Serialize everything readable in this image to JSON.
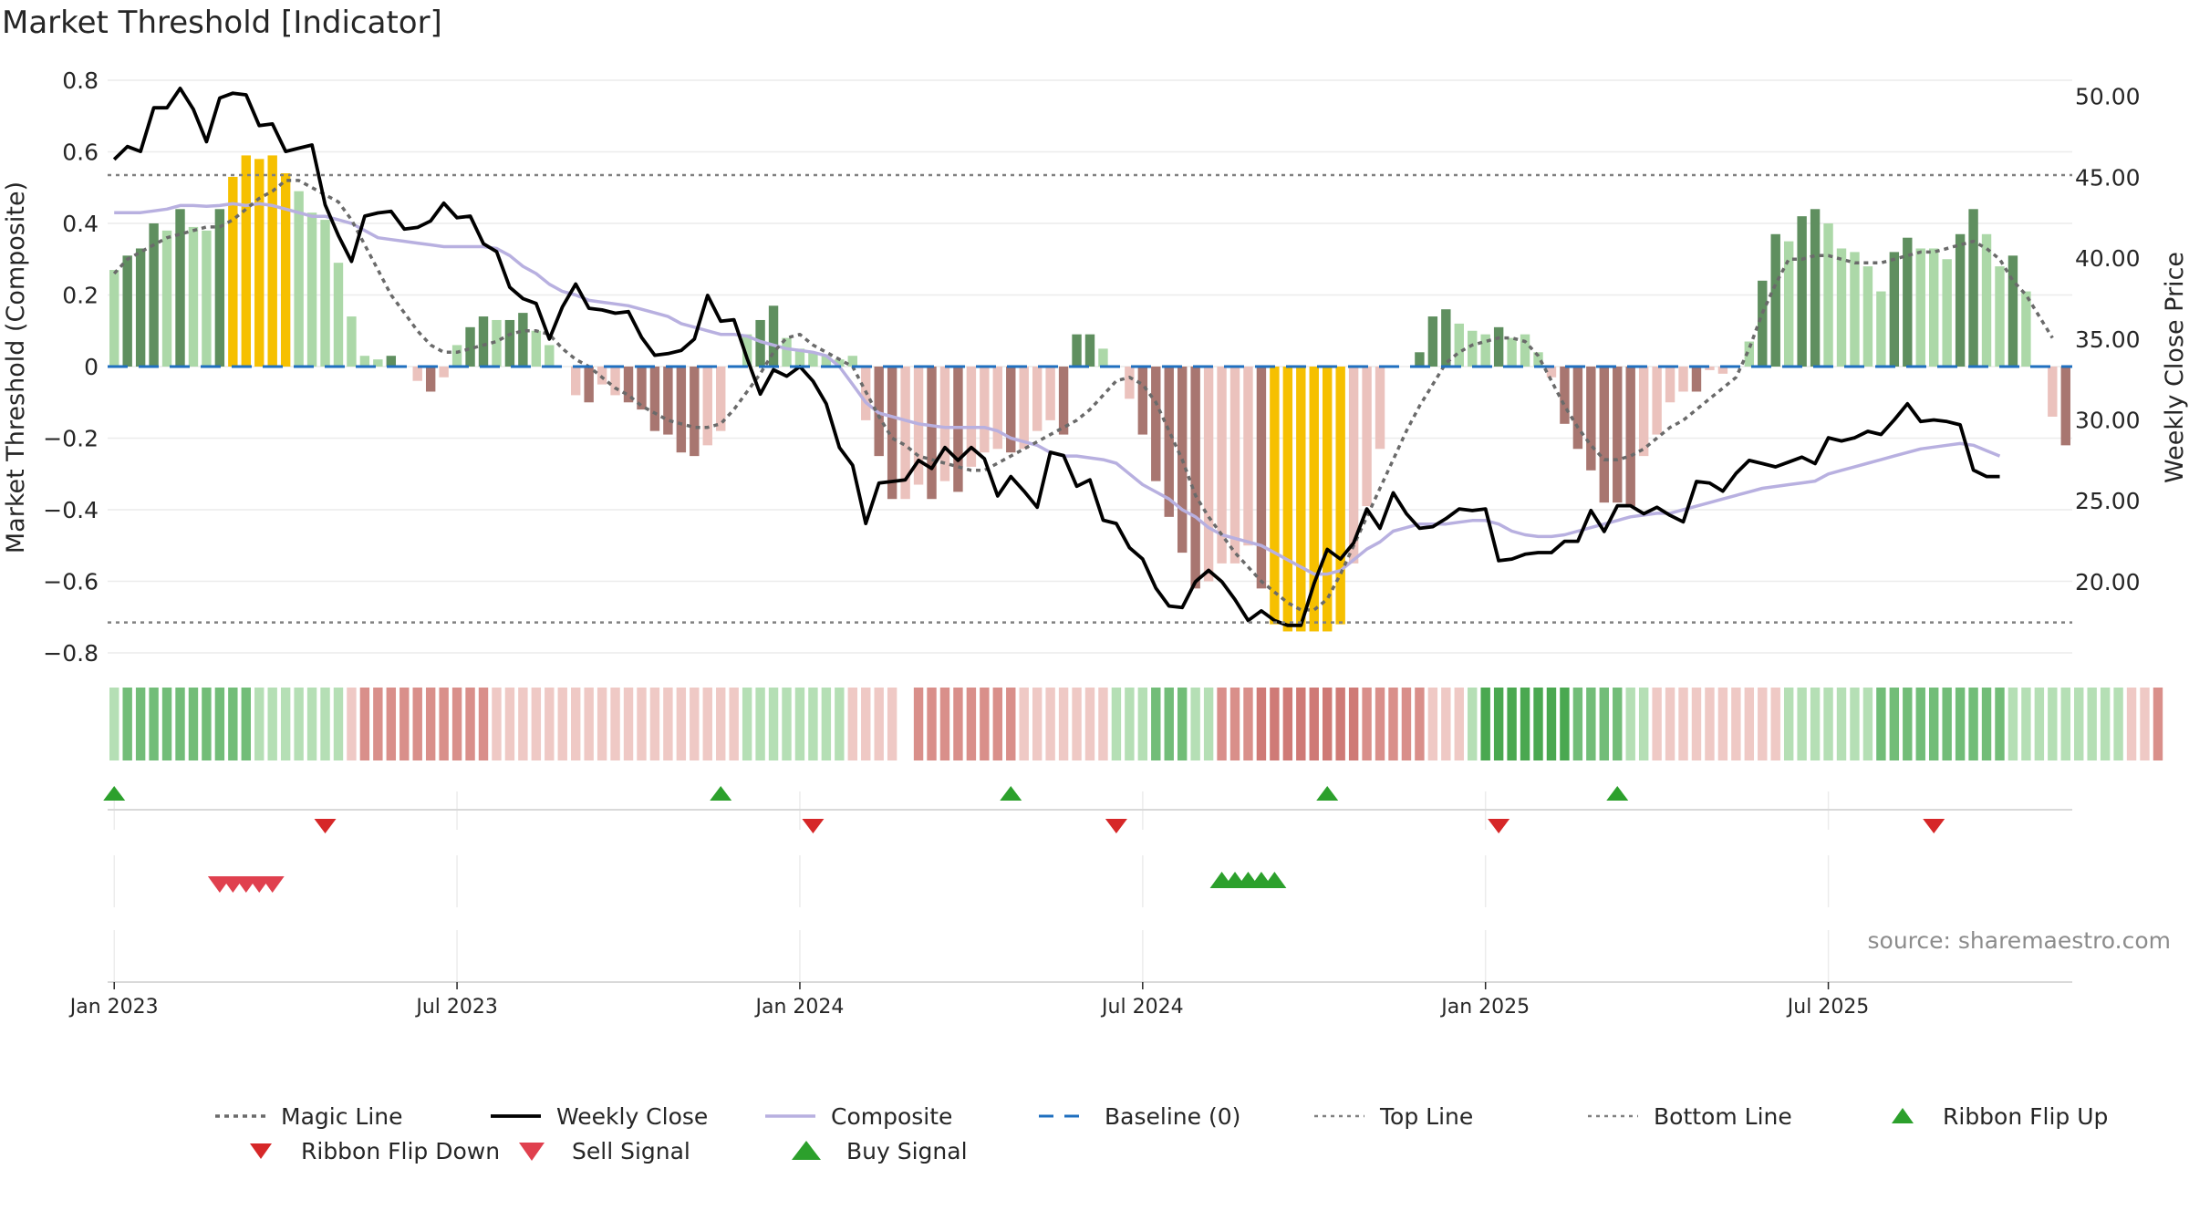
{
  "page": {
    "title": "Market Threshold [Indicator]"
  },
  "colors": {
    "bar_green_dark": "#5f8f5f",
    "bar_green_light": "#acd8a8",
    "bar_red_dark": "#a87670",
    "bar_red_light": "#ebc2bd",
    "bar_yellow": "#f6c000",
    "weekly_close": "#000000",
    "composite": "#b8b0e0",
    "magic_line": "#6a6a6a",
    "baseline": "#1f6fbf",
    "top_bottom": "#808080",
    "triangle_green": "#2ca02c",
    "triangle_red": "#d62728",
    "grid": "#ececec",
    "text": "#262626",
    "source": "#8c8c8c"
  },
  "chart_data": {
    "type": "bar",
    "title": "Market Threshold [Indicator]",
    "ylabel": "Market Threshold (Composite)",
    "y2label": "Weekly Close Price",
    "source": "source: sharemaestro.com",
    "ylim": [
      -0.8,
      0.8
    ],
    "yticks": [
      0.8,
      0.6,
      0.4,
      0.2,
      0,
      -0.2,
      -0.4,
      -0.6,
      -0.8
    ],
    "yticklabels": [
      "0.8",
      "0.6",
      "0.4",
      "0.2",
      "0",
      "−0.2",
      "−0.4",
      "−0.6",
      "−0.8"
    ],
    "y2lim": [
      15.6,
      51.0
    ],
    "y2ticks": [
      50,
      45,
      40,
      35,
      30,
      25,
      20
    ],
    "y2ticklabels": [
      "50.00",
      "45.00",
      "40.00",
      "35.00",
      "30.00",
      "25.00",
      "20.00"
    ],
    "xticks": [
      {
        "label": "Jan 2023",
        "week": 1
      },
      {
        "label": "Jul 2023",
        "week": 27
      },
      {
        "label": "Jan 2024",
        "week": 53
      },
      {
        "label": "Jul 2024",
        "week": 79
      },
      {
        "label": "Jan 2025",
        "week": 105
      },
      {
        "label": "Jul 2025",
        "week": 131
      }
    ],
    "week_labels_note": "x values are week indices; week 1 = first week of Jan 2023",
    "grid": true,
    "top_line": 0.535,
    "bottom_line": -0.715,
    "baseline": 0,
    "legend_position": "bottom",
    "legend": [
      {
        "label": "Magic Line",
        "kind": "dotted-line"
      },
      {
        "label": "Weekly Close",
        "kind": "solid-line"
      },
      {
        "label": "Composite",
        "kind": "lavender-line"
      },
      {
        "label": "Baseline (0)",
        "kind": "dashed-line"
      },
      {
        "label": "Top Line",
        "kind": "gray-dotted-line"
      },
      {
        "label": "Bottom Line",
        "kind": "gray-dotted-line"
      },
      {
        "label": "Ribbon Flip Up",
        "kind": "triangle-up-green"
      },
      {
        "label": "Ribbon Flip Down",
        "kind": "triangle-down-red"
      },
      {
        "label": "Sell Signal",
        "kind": "triangle-down-crimson"
      },
      {
        "label": "Buy Signal",
        "kind": "triangle-up-green-large"
      }
    ],
    "bars": [
      [
        0.27,
        "gl"
      ],
      [
        0.31,
        "gd"
      ],
      [
        0.33,
        "gd"
      ],
      [
        0.4,
        "gd"
      ],
      [
        0.38,
        "gl"
      ],
      [
        0.44,
        "gd"
      ],
      [
        0.39,
        "gl"
      ],
      [
        0.38,
        "gl"
      ],
      [
        0.44,
        "gd"
      ],
      [
        0.53,
        "y"
      ],
      [
        0.59,
        "y"
      ],
      [
        0.58,
        "y"
      ],
      [
        0.59,
        "y"
      ],
      [
        0.54,
        "y"
      ],
      [
        0.49,
        "gl"
      ],
      [
        0.43,
        "gl"
      ],
      [
        0.41,
        "gl"
      ],
      [
        0.29,
        "gl"
      ],
      [
        0.14,
        "gl"
      ],
      [
        0.03,
        "gl"
      ],
      [
        0.02,
        "gl"
      ],
      [
        0.03,
        "gd"
      ],
      [
        0.0,
        "gl"
      ],
      [
        -0.04,
        "rl"
      ],
      [
        -0.07,
        "rd"
      ],
      [
        -0.03,
        "rl"
      ],
      [
        0.06,
        "gl"
      ],
      [
        0.11,
        "gd"
      ],
      [
        0.14,
        "gd"
      ],
      [
        0.13,
        "gl"
      ],
      [
        0.13,
        "gd"
      ],
      [
        0.15,
        "gd"
      ],
      [
        0.1,
        "gl"
      ],
      [
        0.06,
        "gl"
      ],
      [
        0.0,
        "gl"
      ],
      [
        -0.08,
        "rl"
      ],
      [
        -0.1,
        "rd"
      ],
      [
        -0.05,
        "rl"
      ],
      [
        -0.08,
        "rl"
      ],
      [
        -0.1,
        "rd"
      ],
      [
        -0.12,
        "rd"
      ],
      [
        -0.18,
        "rd"
      ],
      [
        -0.19,
        "rd"
      ],
      [
        -0.24,
        "rd"
      ],
      [
        -0.25,
        "rd"
      ],
      [
        -0.22,
        "rl"
      ],
      [
        -0.18,
        "rl"
      ],
      [
        0.0,
        "gl"
      ],
      [
        0.09,
        "gl"
      ],
      [
        0.13,
        "gd"
      ],
      [
        0.17,
        "gd"
      ],
      [
        0.08,
        "gl"
      ],
      [
        0.05,
        "gl"
      ],
      [
        0.04,
        "gl"
      ],
      [
        0.03,
        "gl"
      ],
      [
        0.02,
        "gl"
      ],
      [
        0.03,
        "gl"
      ],
      [
        -0.15,
        "rl"
      ],
      [
        -0.25,
        "rd"
      ],
      [
        -0.37,
        "rd"
      ],
      [
        -0.37,
        "rl"
      ],
      [
        -0.33,
        "rl"
      ],
      [
        -0.37,
        "rd"
      ],
      [
        -0.32,
        "rl"
      ],
      [
        -0.35,
        "rd"
      ],
      [
        -0.28,
        "rl"
      ],
      [
        -0.24,
        "rl"
      ],
      [
        -0.23,
        "rl"
      ],
      [
        -0.24,
        "rd"
      ],
      [
        -0.23,
        "rl"
      ],
      [
        -0.18,
        "rl"
      ],
      [
        -0.15,
        "rl"
      ],
      [
        -0.19,
        "rd"
      ],
      [
        0.09,
        "gd"
      ],
      [
        0.09,
        "gd"
      ],
      [
        0.05,
        "gl"
      ],
      [
        0.0,
        "gl"
      ],
      [
        -0.09,
        "rl"
      ],
      [
        -0.19,
        "rd"
      ],
      [
        -0.32,
        "rd"
      ],
      [
        -0.42,
        "rd"
      ],
      [
        -0.52,
        "rd"
      ],
      [
        -0.62,
        "rd"
      ],
      [
        -0.6,
        "rl"
      ],
      [
        -0.55,
        "rl"
      ],
      [
        -0.55,
        "rl"
      ],
      [
        -0.5,
        "rl"
      ],
      [
        -0.62,
        "rd"
      ],
      [
        -0.72,
        "y"
      ],
      [
        -0.74,
        "y"
      ],
      [
        -0.74,
        "y"
      ],
      [
        -0.74,
        "y"
      ],
      [
        -0.74,
        "y"
      ],
      [
        -0.72,
        "y"
      ],
      [
        -0.55,
        "rl"
      ],
      [
        -0.39,
        "rl"
      ],
      [
        -0.23,
        "rl"
      ],
      [
        0.0,
        "gl"
      ],
      [
        0.0,
        "gl"
      ],
      [
        0.04,
        "gd"
      ],
      [
        0.14,
        "gd"
      ],
      [
        0.16,
        "gd"
      ],
      [
        0.12,
        "gl"
      ],
      [
        0.1,
        "gl"
      ],
      [
        0.09,
        "gl"
      ],
      [
        0.11,
        "gd"
      ],
      [
        0.08,
        "gl"
      ],
      [
        0.09,
        "gl"
      ],
      [
        0.04,
        "gl"
      ],
      [
        -0.03,
        "rl"
      ],
      [
        -0.16,
        "rd"
      ],
      [
        -0.23,
        "rd"
      ],
      [
        -0.29,
        "rd"
      ],
      [
        -0.38,
        "rd"
      ],
      [
        -0.38,
        "rd"
      ],
      [
        -0.39,
        "rd"
      ],
      [
        -0.25,
        "rl"
      ],
      [
        -0.19,
        "rl"
      ],
      [
        -0.1,
        "rl"
      ],
      [
        -0.07,
        "rl"
      ],
      [
        -0.07,
        "rd"
      ],
      [
        -0.01,
        "rl"
      ],
      [
        -0.02,
        "rl"
      ],
      [
        0.0,
        "gl"
      ],
      [
        0.07,
        "gl"
      ],
      [
        0.24,
        "gd"
      ],
      [
        0.37,
        "gd"
      ],
      [
        0.35,
        "gl"
      ],
      [
        0.42,
        "gd"
      ],
      [
        0.44,
        "gd"
      ],
      [
        0.4,
        "gl"
      ],
      [
        0.33,
        "gl"
      ],
      [
        0.32,
        "gl"
      ],
      [
        0.28,
        "gl"
      ],
      [
        0.21,
        "gl"
      ],
      [
        0.32,
        "gd"
      ],
      [
        0.36,
        "gd"
      ],
      [
        0.33,
        "gl"
      ],
      [
        0.33,
        "gl"
      ],
      [
        0.3,
        "gl"
      ],
      [
        0.37,
        "gd"
      ],
      [
        0.44,
        "gd"
      ],
      [
        0.37,
        "gl"
      ],
      [
        0.28,
        "gl"
      ],
      [
        0.31,
        "gd"
      ],
      [
        0.21,
        "gl"
      ],
      [
        0.0,
        "gl"
      ],
      [
        -0.14,
        "rl"
      ],
      [
        -0.22,
        "rd"
      ]
    ],
    "series": [
      {
        "name": "Weekly Close",
        "values": [
          46.1,
          46.9,
          46.6,
          49.3,
          49.3,
          50.5,
          49.2,
          47.2,
          49.9,
          50.2,
          50.1,
          48.2,
          48.3,
          46.6,
          46.8,
          47.0,
          43.3,
          41.4,
          39.8,
          42.6,
          42.8,
          42.9,
          41.8,
          41.9,
          42.3,
          43.4,
          42.5,
          42.6,
          40.9,
          40.4,
          38.2,
          37.5,
          37.2,
          35.0,
          37.0,
          38.4,
          36.9,
          36.8,
          36.6,
          36.7,
          35.1,
          34.0,
          34.1,
          34.3,
          35.0,
          37.7,
          36.1,
          36.2,
          33.8,
          31.6,
          33.1,
          32.7,
          33.3,
          32.4,
          31.0,
          28.3,
          27.2,
          23.6,
          26.1,
          26.2,
          26.3,
          27.5,
          27.0,
          28.3,
          27.5,
          28.3,
          27.6,
          25.3,
          26.5,
          25.6,
          24.6,
          28.0,
          27.8,
          25.9,
          26.3,
          23.8,
          23.6,
          22.1,
          21.4,
          19.6,
          18.5,
          18.4,
          20.0,
          20.7,
          20.0,
          18.9,
          17.6,
          18.2,
          17.6,
          17.3,
          17.3,
          19.9,
          22.0,
          21.4,
          22.4,
          24.5,
          23.3,
          25.5,
          24.2,
          23.3,
          23.4,
          23.9,
          24.5,
          24.4,
          24.5,
          21.3,
          21.4,
          21.7,
          21.8,
          21.8,
          22.5,
          22.5,
          24.4,
          23.1,
          24.7,
          24.7,
          24.2,
          24.6,
          24.1,
          23.7,
          26.2,
          26.1,
          25.6,
          26.7,
          27.5,
          27.3,
          27.1,
          27.4,
          27.7,
          27.3,
          28.9,
          28.7,
          28.9,
          29.3,
          29.1,
          30.0,
          31.0,
          29.9,
          30.0,
          29.9,
          29.7,
          26.9,
          26.5,
          26.5
        ]
      },
      {
        "name": "Composite",
        "values": [
          0.43,
          0.43,
          0.43,
          0.435,
          0.44,
          0.45,
          0.45,
          0.448,
          0.45,
          0.455,
          0.45,
          0.455,
          0.45,
          0.44,
          0.43,
          0.42,
          0.42,
          0.41,
          0.4,
          0.38,
          0.36,
          0.355,
          0.35,
          0.345,
          0.34,
          0.335,
          0.335,
          0.335,
          0.335,
          0.33,
          0.31,
          0.28,
          0.26,
          0.23,
          0.21,
          0.2,
          0.185,
          0.18,
          0.175,
          0.17,
          0.16,
          0.15,
          0.14,
          0.12,
          0.11,
          0.1,
          0.09,
          0.09,
          0.085,
          0.07,
          0.06,
          0.05,
          0.045,
          0.04,
          0.03,
          0.0,
          -0.05,
          -0.1,
          -0.13,
          -0.14,
          -0.15,
          -0.16,
          -0.165,
          -0.17,
          -0.17,
          -0.17,
          -0.17,
          -0.18,
          -0.2,
          -0.21,
          -0.22,
          -0.24,
          -0.25,
          -0.25,
          -0.255,
          -0.26,
          -0.27,
          -0.3,
          -0.33,
          -0.35,
          -0.37,
          -0.4,
          -0.42,
          -0.45,
          -0.47,
          -0.48,
          -0.49,
          -0.5,
          -0.52,
          -0.54,
          -0.56,
          -0.58,
          -0.58,
          -0.57,
          -0.54,
          -0.51,
          -0.49,
          -0.46,
          -0.45,
          -0.44,
          -0.44,
          -0.44,
          -0.435,
          -0.43,
          -0.43,
          -0.44,
          -0.46,
          -0.47,
          -0.475,
          -0.475,
          -0.47,
          -0.46,
          -0.45,
          -0.44,
          -0.43,
          -0.42,
          -0.415,
          -0.41,
          -0.41,
          -0.4,
          -0.39,
          -0.38,
          -0.37,
          -0.36,
          -0.35,
          -0.34,
          -0.335,
          -0.33,
          -0.325,
          -0.32,
          -0.3,
          -0.29,
          -0.28,
          -0.27,
          -0.26,
          -0.25,
          -0.24,
          -0.23,
          -0.225,
          -0.22,
          -0.215,
          -0.22,
          -0.235,
          -0.25
        ]
      },
      {
        "name": "Magic Line",
        "values": [
          0.26,
          0.3,
          0.32,
          0.34,
          0.36,
          0.37,
          0.38,
          0.39,
          0.39,
          0.41,
          0.44,
          0.47,
          0.49,
          0.52,
          0.52,
          0.5,
          0.48,
          0.46,
          0.41,
          0.34,
          0.27,
          0.2,
          0.15,
          0.1,
          0.06,
          0.04,
          0.04,
          0.05,
          0.06,
          0.07,
          0.09,
          0.1,
          0.1,
          0.09,
          0.05,
          0.02,
          0.0,
          -0.03,
          -0.06,
          -0.08,
          -0.11,
          -0.13,
          -0.15,
          -0.16,
          -0.17,
          -0.17,
          -0.16,
          -0.12,
          -0.07,
          -0.02,
          0.04,
          0.08,
          0.09,
          0.06,
          0.04,
          0.02,
          0.0,
          -0.07,
          -0.14,
          -0.2,
          -0.22,
          -0.25,
          -0.26,
          -0.27,
          -0.28,
          -0.29,
          -0.29,
          -0.27,
          -0.25,
          -0.23,
          -0.21,
          -0.19,
          -0.17,
          -0.15,
          -0.12,
          -0.08,
          -0.04,
          -0.03,
          -0.05,
          -0.1,
          -0.18,
          -0.26,
          -0.36,
          -0.42,
          -0.47,
          -0.52,
          -0.56,
          -0.6,
          -0.63,
          -0.66,
          -0.68,
          -0.68,
          -0.65,
          -0.58,
          -0.5,
          -0.42,
          -0.34,
          -0.26,
          -0.18,
          -0.11,
          -0.05,
          0.01,
          0.04,
          0.06,
          0.07,
          0.08,
          0.08,
          0.07,
          0.03,
          -0.04,
          -0.11,
          -0.17,
          -0.22,
          -0.26,
          -0.26,
          -0.25,
          -0.23,
          -0.2,
          -0.17,
          -0.15,
          -0.12,
          -0.09,
          -0.06,
          -0.03,
          0.05,
          0.15,
          0.23,
          0.3,
          0.3,
          0.31,
          0.31,
          0.3,
          0.29,
          0.29,
          0.29,
          0.3,
          0.31,
          0.32,
          0.32,
          0.33,
          0.34,
          0.35,
          0.33,
          0.3,
          0.24,
          0.2,
          0.14,
          0.08
        ]
      }
    ],
    "ribbon": [
      1,
      2,
      2,
      2,
      2,
      2,
      2,
      2,
      2,
      2,
      2,
      1,
      1,
      1,
      1,
      1,
      1,
      1,
      -1,
      -2,
      -2,
      -2,
      -2,
      -2,
      -2,
      -2,
      -2,
      -2,
      -2,
      -1,
      -1,
      -1,
      -1,
      -1,
      -1,
      -1,
      -1,
      -1,
      -1,
      -1,
      -1,
      -1,
      -1,
      -1,
      -1,
      -1,
      -1,
      -1,
      1,
      1,
      1,
      1,
      1,
      1,
      1,
      1,
      -1,
      -1,
      -1,
      -1,
      0,
      -2,
      -2,
      -2,
      -2,
      -2,
      -2,
      -2,
      -2,
      -1,
      -1,
      -1,
      -1,
      -1,
      -1,
      -1,
      1,
      1,
      1,
      2,
      2,
      2,
      1,
      1,
      -2,
      -2,
      -2,
      -3,
      -3,
      -3,
      -3,
      -3,
      -3,
      -3,
      -3,
      -2,
      -2,
      -2,
      -2,
      -2,
      -1,
      -1,
      -1,
      1,
      3,
      3,
      3,
      3,
      3,
      3,
      3,
      2,
      2,
      2,
      2,
      1,
      1,
      -1,
      -1,
      -1,
      -1,
      -1,
      -1,
      -1,
      -1,
      -1,
      -1,
      1,
      1,
      1,
      1,
      1,
      1,
      1,
      2,
      2,
      2,
      2,
      2,
      2,
      2,
      2,
      2,
      2,
      1,
      1,
      1,
      1,
      1,
      1,
      1,
      1,
      1,
      -1,
      -1,
      -2
    ],
    "ribbon_flip_up_weeks": [
      1,
      47,
      69,
      93,
      115
    ],
    "ribbon_flip_down_weeks": [
      17,
      54,
      77,
      106,
      139
    ],
    "sell_signal_weeks": [
      9,
      10,
      11,
      12,
      13
    ],
    "buy_signal_weeks": [
      85,
      86,
      87,
      88,
      89
    ]
  }
}
